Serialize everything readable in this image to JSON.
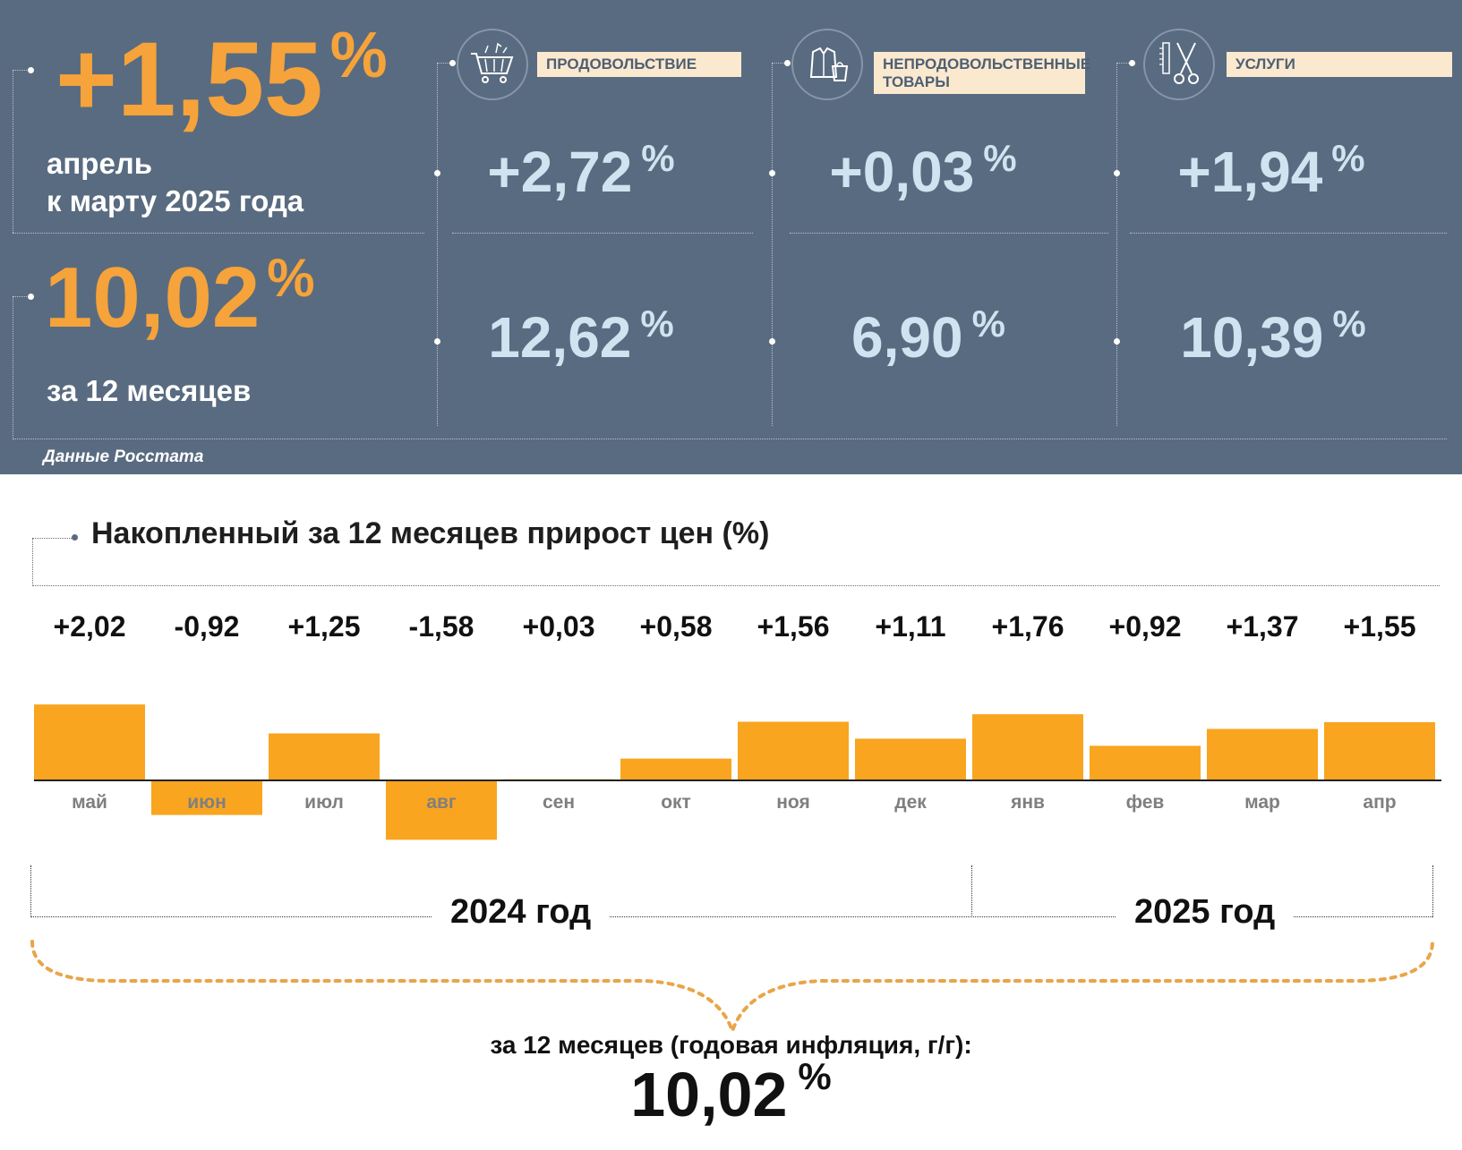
{
  "summary": {
    "monthly": {
      "value": "+1,55",
      "unit": "%",
      "line1": "апрель",
      "line2": "к марту 2025 года"
    },
    "annual": {
      "value": "10,02",
      "unit": "%",
      "label": "за 12 месяцев"
    },
    "source": "Данные Росстата"
  },
  "categories": [
    {
      "label": "ПРОДОВОЛЬСТВИЕ",
      "icon": "shopping-cart-icon",
      "monthly": "+2,72",
      "annual": "12,62",
      "unit": "%"
    },
    {
      "label": "НЕПРОДОВОЛЬСТВЕННЫЕ ТОВАРЫ",
      "icon": "clothing-icon",
      "monthly": "+0,03",
      "annual": "6,90",
      "unit": "%"
    },
    {
      "label": "УСЛУГИ",
      "icon": "scissors-comb-icon",
      "monthly": "+1,94",
      "annual": "10,39",
      "unit": "%"
    }
  ],
  "chart_data": {
    "type": "bar",
    "title": "Накопленный за 12 месяцев прирост цен (%)",
    "categories": [
      "май",
      "июн",
      "июл",
      "авг",
      "сен",
      "окт",
      "ноя",
      "дек",
      "янв",
      "фев",
      "мар",
      "апр"
    ],
    "values": [
      2.02,
      -0.92,
      1.25,
      -1.58,
      0.03,
      0.58,
      1.56,
      1.11,
      1.76,
      0.92,
      1.37,
      1.55
    ],
    "value_labels": [
      "+2,02",
      "-0,92",
      "+1,25",
      "-1,58",
      "+0,03",
      "+0,58",
      "+1,56",
      "+1,11",
      "+1,76",
      "+0,92",
      "+1,37",
      "+1,55"
    ],
    "ylim": [
      -1.58,
      2.02
    ],
    "bar_color": "#f9a51f",
    "year_groups": [
      {
        "label": "2024 год",
        "months": [
          "май",
          "июн",
          "июл",
          "авг",
          "сен",
          "окт",
          "ноя",
          "дек"
        ]
      },
      {
        "label": "2025 год",
        "months": [
          "янв",
          "фев",
          "мар",
          "апр"
        ]
      }
    ],
    "total_label": "за 12 месяцев (годовая инфляция, г/г):",
    "total_value": "10,02",
    "total_unit": "%"
  },
  "colors": {
    "panel_bg": "#596b80",
    "orange": "#f5a33a",
    "light_blue": "#cfe3f0",
    "label_bg": "#fbe9cf"
  }
}
